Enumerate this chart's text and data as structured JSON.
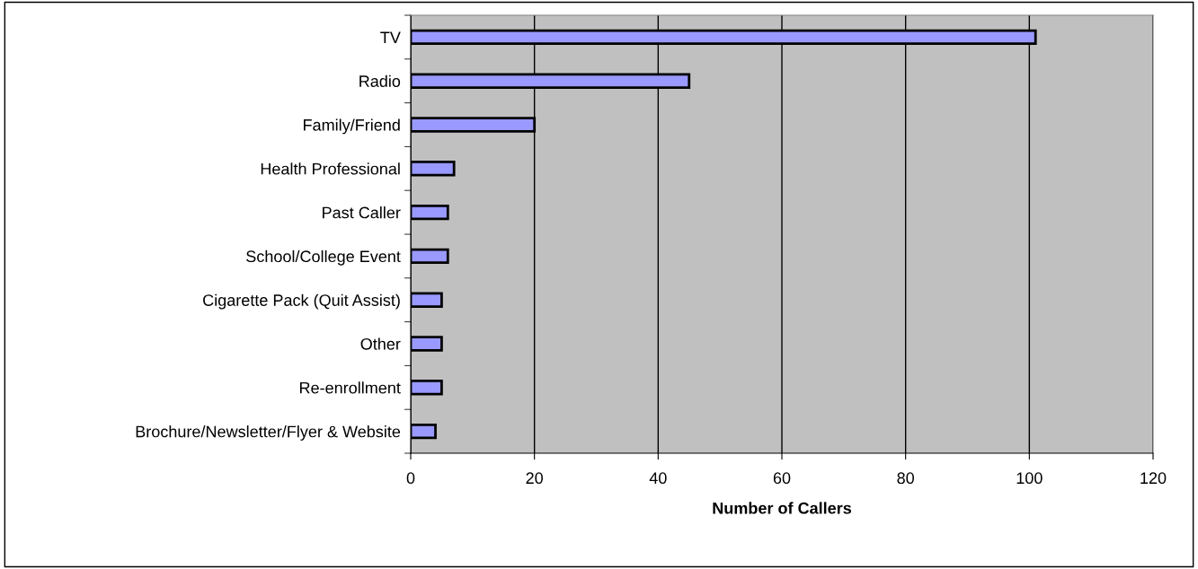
{
  "chart_data": {
    "type": "bar",
    "orientation": "horizontal",
    "xlabel": "Number of Callers",
    "categories": [
      "TV",
      "Radio",
      "Family/Friend",
      "Health Professional",
      "Past Caller",
      "School/College Event",
      "Cigarette Pack (Quit Assist)",
      "Other",
      "Re-enrollment",
      "Brochure/Newsletter/Flyer & Website"
    ],
    "values": [
      101,
      45,
      20,
      7,
      6,
      6,
      5,
      5,
      5,
      4
    ],
    "color": "#9999ff",
    "xlim": [
      0,
      120
    ],
    "xticks": [
      0,
      20,
      40,
      60,
      80,
      100,
      120
    ],
    "grid": "x",
    "legend": false
  }
}
